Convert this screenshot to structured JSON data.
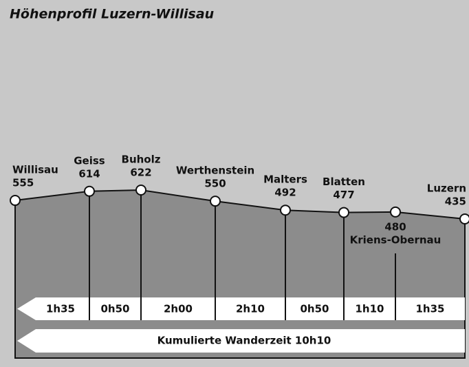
{
  "chart_data": {
    "type": "line",
    "title": "Höhenprofil Luzern-Willisau",
    "categories": [
      "Willisau",
      "Geiss",
      "Buholz",
      "Werthenstein",
      "Malters",
      "Blatten",
      "Kriens-Obernau",
      "Luzern"
    ],
    "values": [
      555,
      614,
      622,
      550,
      492,
      477,
      480,
      435
    ],
    "segment_times": [
      "1h35",
      "0h50",
      "2h00",
      "2h10",
      "0h50",
      "1h10",
      "1h35"
    ],
    "total_label": "Kumulierte Wanderzeit 10h10"
  }
}
